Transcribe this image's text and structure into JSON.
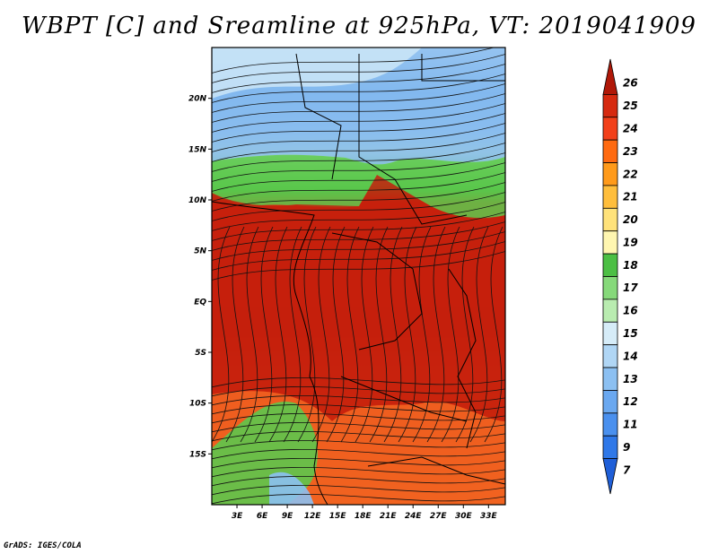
{
  "title": "WBPT [C] and Sreamline at 925hPa, VT: 2019041909",
  "credit": "GrADS: IGES/COLA",
  "colors": {
    "frame": "#000000",
    "streamline": "#111111"
  },
  "map": {
    "lat_labels": [
      "20N",
      "15N",
      "10N",
      "5N",
      "EQ",
      "5S",
      "10S",
      "15S"
    ],
    "lat_values": [
      20,
      15,
      10,
      5,
      0,
      -5,
      -10,
      -15
    ],
    "lon_labels": [
      "3E",
      "6E",
      "9E",
      "12E",
      "15E",
      "18E",
      "21E",
      "24E",
      "27E",
      "30E",
      "33E"
    ],
    "lon_values": [
      3,
      6,
      9,
      12,
      15,
      18,
      21,
      24,
      27,
      30,
      33
    ],
    "lat_range": [
      -20,
      25
    ],
    "lon_range": [
      0,
      35
    ]
  },
  "colorbar": {
    "labels": [
      "7",
      "9",
      "11",
      "12",
      "13",
      "14",
      "15",
      "16",
      "17",
      "18",
      "19",
      "20",
      "21",
      "22",
      "23",
      "24",
      "25",
      "26"
    ],
    "colors": [
      "#1f5fd8",
      "#2f78e8",
      "#4a90ee",
      "#6aa8f0",
      "#8cc0f2",
      "#b0d6f5",
      "#d6ecf8",
      "#b9ecb0",
      "#86d97a",
      "#4cbf44",
      "#fff6b0",
      "#ffe27a",
      "#ffbe3c",
      "#ff9a1a",
      "#ff6a10",
      "#f2401a",
      "#d62a10",
      "#b01808"
    ]
  }
}
